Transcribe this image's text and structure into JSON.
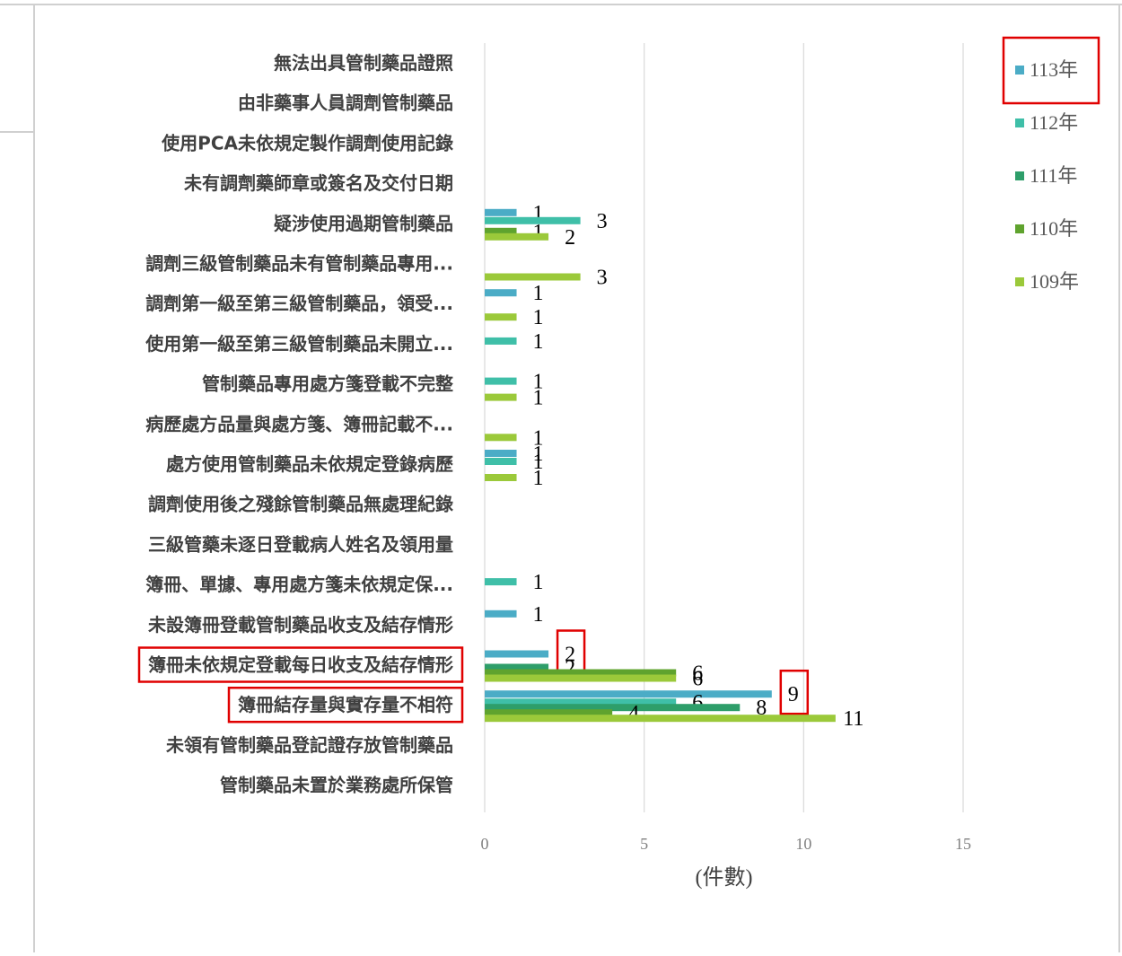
{
  "chart_data": {
    "type": "bar",
    "orientation": "horizontal",
    "categories": [
      "無法出具管制藥品證照",
      "由非藥事人員調劑管制藥品",
      "使用PCA未依規定製作調劑使用記錄",
      "未有調劑藥師章或簽名及交付日期",
      "疑涉使用過期管制藥品",
      "調劑三級管制藥品未有管制藥品專用...",
      "調劑第一級至第三級管制藥品，領受...",
      "使用第一級至第三級管制藥品未開立...",
      "管制藥品專用處方箋登載不完整",
      "病歷處方品量與處方箋、簿冊記載不...",
      "處方使用管制藥品未依規定登錄病歷",
      "調劑使用後之殘餘管制藥品無處理紀錄",
      "三級管藥未逐日登載病人姓名及領用量",
      "簿冊、單據、專用處方箋未依規定保...",
      "未設簿冊登載管制藥品收支及結存情形",
      "簿冊未依規定登載每日收支及結存情形",
      "簿冊結存量與實存量不相符",
      "未領有管制藥品登記證存放管制藥品",
      "管制藥品未置於業務處所保管"
    ],
    "series": [
      {
        "name": "113年",
        "color": "#4BACC6",
        "values": [
          null,
          null,
          null,
          null,
          1,
          null,
          1,
          null,
          null,
          null,
          1,
          null,
          null,
          null,
          1,
          2,
          9,
          null,
          null
        ]
      },
      {
        "name": "112年",
        "color": "#3FBFA8",
        "values": [
          null,
          null,
          null,
          null,
          3,
          null,
          null,
          1,
          1,
          null,
          1,
          null,
          null,
          1,
          null,
          null,
          6,
          null,
          null
        ]
      },
      {
        "name": "111年",
        "color": "#2E9E6A",
        "values": [
          null,
          null,
          null,
          null,
          null,
          null,
          null,
          null,
          null,
          null,
          null,
          null,
          null,
          null,
          null,
          2,
          8,
          null,
          null
        ]
      },
      {
        "name": "110年",
        "color": "#5FA32E",
        "values": [
          null,
          null,
          null,
          null,
          1,
          null,
          null,
          null,
          null,
          null,
          null,
          null,
          null,
          null,
          null,
          6,
          4,
          null,
          null
        ]
      },
      {
        "name": "109年",
        "color": "#9BC93A",
        "values": [
          null,
          null,
          null,
          null,
          2,
          3,
          1,
          null,
          1,
          1,
          1,
          null,
          null,
          null,
          null,
          6,
          11,
          null,
          null
        ]
      }
    ],
    "x_ticks": [
      "0",
      "5",
      "10",
      "15"
    ],
    "xlim": [
      0,
      15
    ],
    "xlabel": "(件數)",
    "grid": "vertical",
    "legend": "right",
    "highlighted_categories": [
      "簿冊未依規定登載每日收支及結存情形",
      "簿冊結存量與實存量不相符"
    ],
    "highlighted_legend": "113年",
    "highlighted_value_labels": [
      {
        "category": "簿冊未依規定登載每日收支及結存情形",
        "series": "113年"
      },
      {
        "category": "簿冊結存量與實存量不相符",
        "series": "113年"
      }
    ],
    "highlight_color": "#E00000"
  }
}
